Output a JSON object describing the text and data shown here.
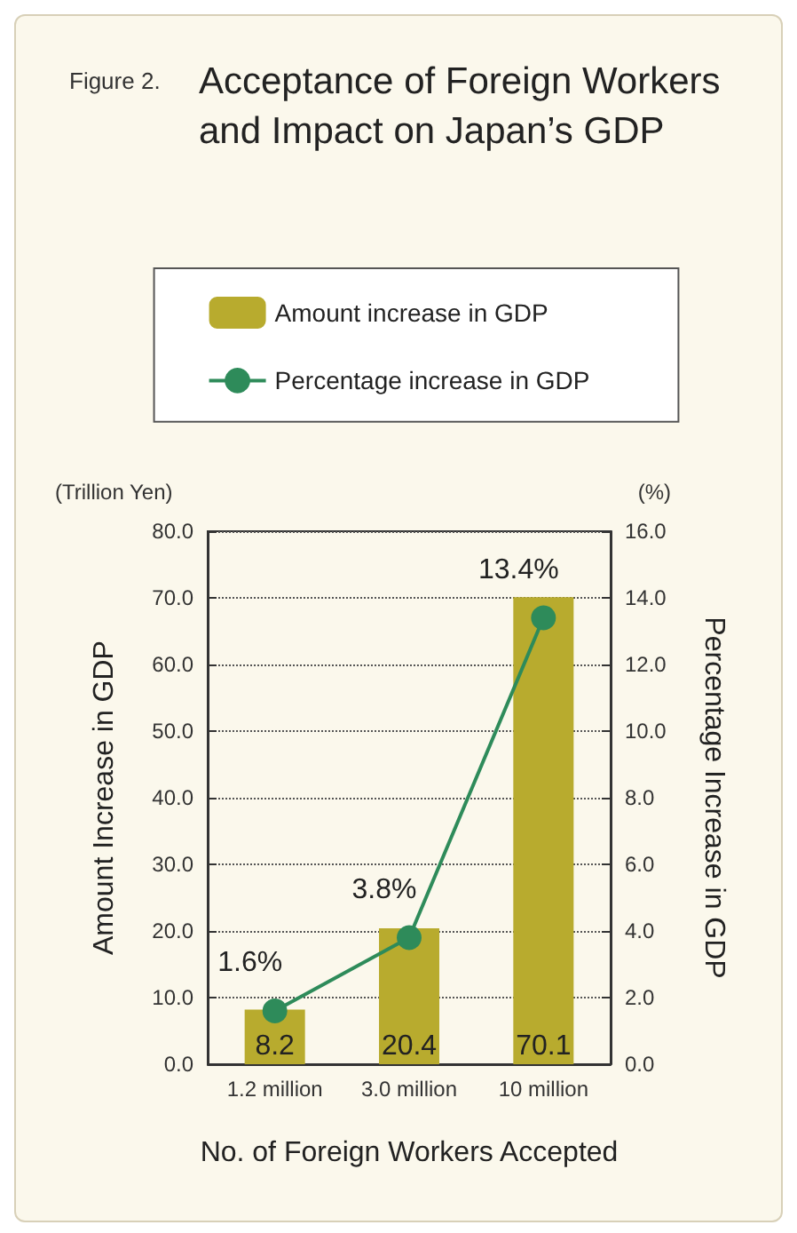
{
  "chart_data": {
    "type": "bar",
    "title": "Acceptance of Foreign Workers and Impact on Japan’s GDP",
    "annotations": [
      "Figure 2.",
      "(Trillion Yen)",
      "(%)"
    ],
    "xlabel": "No. of Foreign Workers Accepted",
    "ylabel": "Amount Increase in GDP",
    "y2label": "Percentage Increase in GDP",
    "categories": [
      "1.2 million",
      "3.0 million",
      "10 million"
    ],
    "series": [
      {
        "name": "Amount increase in GDP",
        "color": "#b8ab2e",
        "values": [
          8.2,
          20.4,
          70.1
        ],
        "value_labels": [
          "8.2",
          "20.4",
          "70.1"
        ]
      },
      {
        "name": "Percentage increase in GDP",
        "type": "line",
        "axis": "y2",
        "color": "#2e8b5a",
        "marker": "circle",
        "values": [
          1.6,
          3.8,
          13.4
        ],
        "value_labels": [
          "1.6%",
          "3.8%",
          "13.4%"
        ]
      }
    ],
    "ylim": [
      0,
      80
    ],
    "yticks": [
      {
        "value": 0,
        "label": "0.0"
      },
      {
        "value": 10,
        "label": "10.0"
      },
      {
        "value": 20,
        "label": "20.0"
      },
      {
        "value": 30,
        "label": "30.0"
      },
      {
        "value": 40,
        "label": "40.0"
      },
      {
        "value": 50,
        "label": "50.0"
      },
      {
        "value": 60,
        "label": "60.0"
      },
      {
        "value": 70,
        "label": "70.0"
      },
      {
        "value": 80,
        "label": "80.0"
      }
    ],
    "y2lim": [
      0,
      16
    ],
    "y2ticks": [
      {
        "value": 0,
        "label": "0.0"
      },
      {
        "value": 2,
        "label": "2.0"
      },
      {
        "value": 4,
        "label": "4.0"
      },
      {
        "value": 6,
        "label": "6.0"
      },
      {
        "value": 8,
        "label": "8.0"
      },
      {
        "value": 10,
        "label": "10.0"
      },
      {
        "value": 12,
        "label": "12.0"
      },
      {
        "value": 14,
        "label": "14.0"
      },
      {
        "value": 16,
        "label": "16.0"
      }
    ],
    "grid": "y",
    "legend": "top"
  }
}
